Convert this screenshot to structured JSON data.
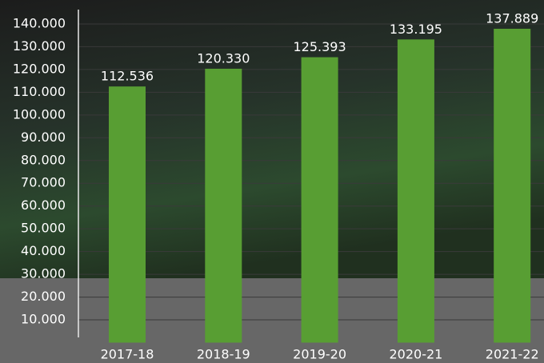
{
  "chart_data": {
    "type": "bar",
    "categories": [
      "2017-18",
      "2018-19",
      "2019-20",
      "2020-21",
      "2021-22"
    ],
    "values": [
      112536,
      120330,
      125393,
      133195,
      137889
    ],
    "value_labels": [
      "112.536",
      "120.330",
      "125.393",
      "133.195",
      "137.889"
    ],
    "color": "#589e33",
    "ylim": [
      0,
      150000
    ],
    "yticks": [
      {
        "value": 10000,
        "label": "10.000"
      },
      {
        "value": 20000,
        "label": "20.000"
      },
      {
        "value": 30000,
        "label": "30.000"
      },
      {
        "value": 40000,
        "label": "40.000"
      },
      {
        "value": 50000,
        "label": "50.000"
      },
      {
        "value": 60000,
        "label": "60.000"
      },
      {
        "value": 70000,
        "label": "70.000"
      },
      {
        "value": 80000,
        "label": "80.000"
      },
      {
        "value": 90000,
        "label": "90.000"
      },
      {
        "value": 100000,
        "label": "100.000"
      },
      {
        "value": 110000,
        "label": "110.000"
      },
      {
        "value": 120000,
        "label": "120.000"
      },
      {
        "value": 130000,
        "label": "130.000"
      },
      {
        "value": 140000,
        "label": "140.000"
      }
    ],
    "grid": true
  }
}
